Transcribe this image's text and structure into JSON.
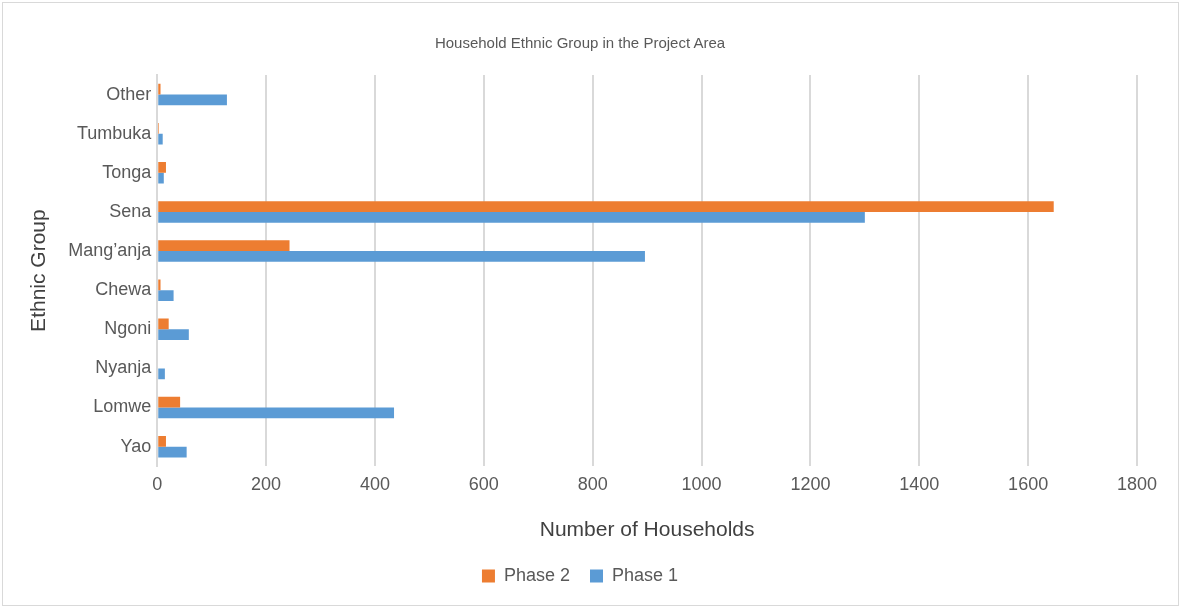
{
  "chart_data": {
    "type": "bar",
    "orientation": "horizontal",
    "title": "Household Ethnic Group in the Project Area",
    "xlabel": "Number of Households",
    "ylabel": "Ethnic Group",
    "categories": [
      "Other",
      "Tumbuka",
      "Tonga",
      "Sena",
      "Mang’anja",
      "Chewa",
      "Ngoni",
      "Nyanja",
      "Lomwe",
      "Yao"
    ],
    "series": [
      {
        "name": "Phase 2",
        "color": "#ed7d31",
        "values": [
          6,
          3,
          16,
          1647,
          243,
          6,
          21,
          0,
          42,
          16
        ]
      },
      {
        "name": "Phase 1",
        "color": "#5b9bd5",
        "values": [
          128,
          10,
          12,
          1300,
          896,
          30,
          58,
          14,
          435,
          54
        ]
      }
    ],
    "xlim": [
      0,
      1800
    ],
    "xticks": [
      0,
      200,
      400,
      600,
      800,
      1000,
      1200,
      1400,
      1600,
      1800
    ],
    "grid": "x",
    "legend": "bottom"
  }
}
